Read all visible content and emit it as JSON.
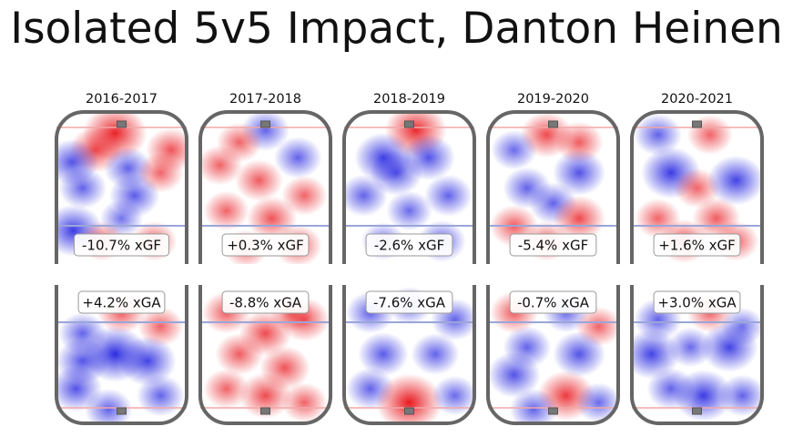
{
  "title": "Isolated 5v5 Impact, Danton Heinen",
  "colors": {
    "positive": "#e8151b",
    "negative": "#1f1fe0",
    "board": "#666666",
    "blue_line": "#9aa6d8",
    "red_line": "#f2a7a7"
  },
  "chart_data": {
    "type": "heatmap",
    "title": "Isolated 5v5 Impact, Danton Heinen",
    "panels": [
      {
        "season": "2016-2017",
        "xgf": "-10.7% xGF",
        "xga": "+4.2% xGA",
        "offense_blobs": [
          [
            0.45,
            0.14,
            0.85
          ],
          [
            0.3,
            0.25,
            0.6
          ],
          [
            0.88,
            0.25,
            0.55
          ],
          [
            0.12,
            0.33,
            -0.6
          ],
          [
            0.55,
            0.37,
            -0.5
          ],
          [
            0.8,
            0.4,
            0.45
          ],
          [
            0.2,
            0.5,
            -0.5
          ],
          [
            0.6,
            0.55,
            -0.55
          ],
          [
            0.5,
            0.7,
            -0.4
          ],
          [
            0.13,
            0.78,
            -0.75
          ],
          [
            0.35,
            0.85,
            0.45
          ],
          [
            0.75,
            0.85,
            0.45
          ]
        ],
        "defense_blobs": [
          [
            0.2,
            0.35,
            -0.5
          ],
          [
            0.5,
            0.2,
            0.5
          ],
          [
            0.8,
            0.3,
            0.45
          ],
          [
            0.2,
            0.55,
            -0.6
          ],
          [
            0.45,
            0.5,
            -0.85
          ],
          [
            0.7,
            0.55,
            -0.7
          ],
          [
            0.15,
            0.75,
            -0.6
          ],
          [
            0.4,
            0.9,
            -0.5
          ],
          [
            0.8,
            0.8,
            -0.5
          ]
        ]
      },
      {
        "season": "2017-2018",
        "xgf": "+0.3% xGF",
        "xga": "-8.8% xGA",
        "offense_blobs": [
          [
            0.5,
            0.12,
            -0.5
          ],
          [
            0.3,
            0.2,
            0.45
          ],
          [
            0.75,
            0.3,
            -0.5
          ],
          [
            0.15,
            0.35,
            0.45
          ],
          [
            0.45,
            0.45,
            0.5
          ],
          [
            0.8,
            0.55,
            0.45
          ],
          [
            0.2,
            0.65,
            0.45
          ],
          [
            0.55,
            0.7,
            0.55
          ],
          [
            0.35,
            0.9,
            0.4
          ],
          [
            0.75,
            0.88,
            0.5
          ]
        ],
        "defense_blobs": [
          [
            0.2,
            0.2,
            0.5
          ],
          [
            0.5,
            0.35,
            0.6
          ],
          [
            0.8,
            0.25,
            0.55
          ],
          [
            0.3,
            0.5,
            0.5
          ],
          [
            0.65,
            0.6,
            0.55
          ],
          [
            0.2,
            0.75,
            0.45
          ],
          [
            0.5,
            0.8,
            0.6
          ],
          [
            0.8,
            0.85,
            0.45
          ],
          [
            0.7,
            0.2,
            0.4
          ]
        ]
      },
      {
        "season": "2018-2019",
        "xgf": "-2.6% xGF",
        "xga": "-7.6% xGA",
        "offense_blobs": [
          [
            0.55,
            0.12,
            0.8
          ],
          [
            0.3,
            0.3,
            -0.7
          ],
          [
            0.65,
            0.3,
            -0.6
          ],
          [
            0.4,
            0.4,
            -0.6
          ],
          [
            0.15,
            0.55,
            -0.5
          ],
          [
            0.8,
            0.55,
            -0.5
          ],
          [
            0.5,
            0.65,
            -0.45
          ],
          [
            0.3,
            0.85,
            -0.4
          ],
          [
            0.75,
            0.85,
            -0.5
          ]
        ],
        "defense_blobs": [
          [
            0.2,
            0.2,
            -0.5
          ],
          [
            0.5,
            0.15,
            -0.4
          ],
          [
            0.85,
            0.25,
            -0.5
          ],
          [
            0.3,
            0.5,
            -0.55
          ],
          [
            0.7,
            0.5,
            -0.5
          ],
          [
            0.2,
            0.75,
            -0.5
          ],
          [
            0.5,
            0.85,
            0.9
          ],
          [
            0.85,
            0.8,
            -0.45
          ]
        ]
      },
      {
        "season": "2019-2020",
        "xgf": "-5.4% xGF",
        "xga": "-0.7% xGA",
        "offense_blobs": [
          [
            0.45,
            0.15,
            0.6
          ],
          [
            0.7,
            0.2,
            0.5
          ],
          [
            0.2,
            0.25,
            -0.45
          ],
          [
            0.7,
            0.4,
            -0.6
          ],
          [
            0.3,
            0.5,
            -0.5
          ],
          [
            0.5,
            0.6,
            -0.5
          ],
          [
            0.2,
            0.75,
            0.5
          ],
          [
            0.7,
            0.7,
            0.6
          ],
          [
            0.45,
            0.85,
            0.45
          ]
        ],
        "defense_blobs": [
          [
            0.2,
            0.2,
            0.5
          ],
          [
            0.6,
            0.2,
            -0.45
          ],
          [
            0.85,
            0.3,
            0.45
          ],
          [
            0.3,
            0.45,
            -0.5
          ],
          [
            0.7,
            0.5,
            -0.6
          ],
          [
            0.2,
            0.65,
            -0.6
          ],
          [
            0.6,
            0.8,
            0.7
          ],
          [
            0.35,
            0.9,
            -0.5
          ],
          [
            0.85,
            0.85,
            -0.45
          ]
        ]
      },
      {
        "season": "2020-2021",
        "xgf": "+1.6% xGF",
        "xga": "+3.0% xGA",
        "offense_blobs": [
          [
            0.2,
            0.15,
            -0.5
          ],
          [
            0.6,
            0.15,
            0.45
          ],
          [
            0.3,
            0.4,
            -0.75
          ],
          [
            0.5,
            0.5,
            0.45
          ],
          [
            0.8,
            0.45,
            -0.7
          ],
          [
            0.2,
            0.7,
            0.45
          ],
          [
            0.65,
            0.7,
            0.5
          ],
          [
            0.4,
            0.85,
            0.55
          ],
          [
            0.8,
            0.85,
            0.45
          ]
        ],
        "defense_blobs": [
          [
            0.2,
            0.25,
            -0.5
          ],
          [
            0.6,
            0.2,
            0.45
          ],
          [
            0.85,
            0.3,
            -0.4
          ],
          [
            0.15,
            0.5,
            -0.7
          ],
          [
            0.45,
            0.45,
            -0.45
          ],
          [
            0.75,
            0.45,
            -0.7
          ],
          [
            0.3,
            0.75,
            -0.5
          ],
          [
            0.55,
            0.8,
            -0.75
          ],
          [
            0.85,
            0.8,
            -0.5
          ]
        ]
      }
    ]
  }
}
